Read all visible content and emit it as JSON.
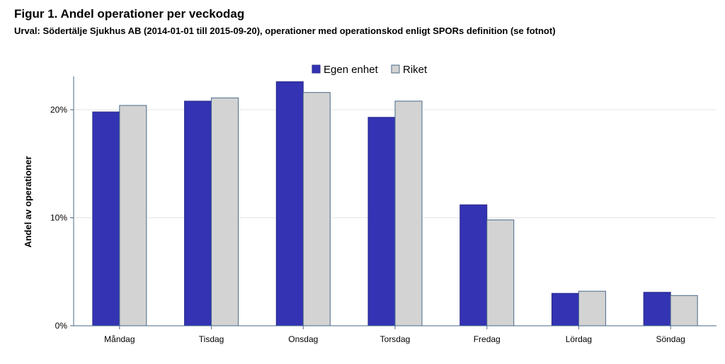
{
  "title": "Figur 1. Andel operationer per veckodag",
  "subtitle": "Urval: Södertälje Sjukhus AB (2014-01-01 till 2015-09-20), operationer med operationskod enligt SPORs definition (se fotnot)",
  "chart_data": {
    "type": "bar",
    "ylabel": "Andel av operationer",
    "xlabel": "",
    "ylim": [
      0,
      0.2
    ],
    "y_ticks": [
      "0%",
      "10%",
      "20%"
    ],
    "y_tick_values": [
      0,
      0.1,
      0.2
    ],
    "grid": true,
    "legend_position": "top-center",
    "categories": [
      "Måndag",
      "Tisdag",
      "Onsdag",
      "Torsdag",
      "Fredag",
      "Lördag",
      "Söndag"
    ],
    "series": [
      {
        "name": "Egen enhet",
        "color": "#3333b3",
        "values": [
          0.198,
          0.208,
          0.226,
          0.193,
          0.112,
          0.03,
          0.031
        ]
      },
      {
        "name": "Riket",
        "color": "#d3d3d3",
        "values": [
          0.204,
          0.211,
          0.216,
          0.208,
          0.098,
          0.032,
          0.028
        ]
      }
    ]
  }
}
